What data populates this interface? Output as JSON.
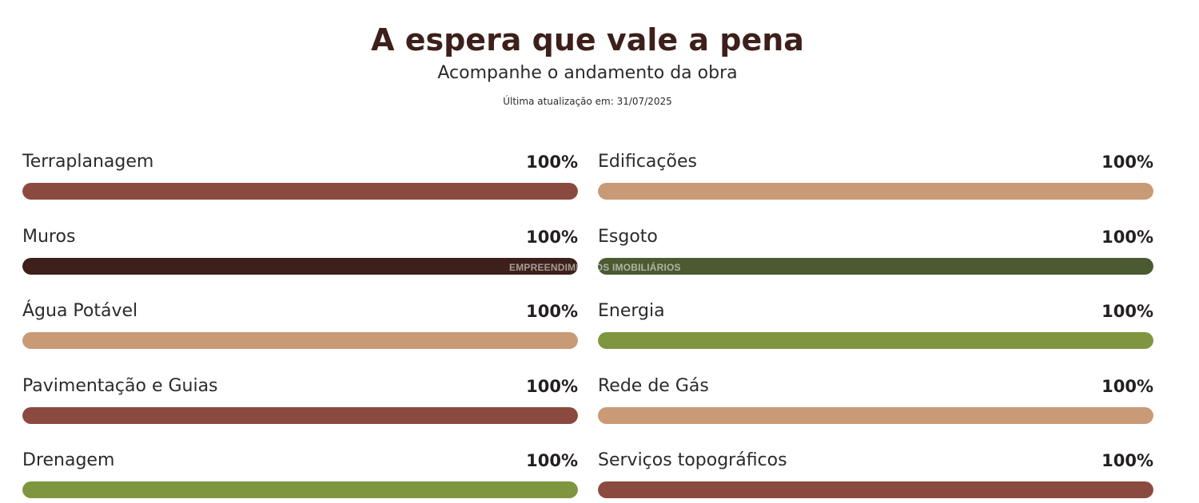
{
  "header": {
    "title": "A espera que vale a pena",
    "subtitle": "Acompanhe o andamento da obra",
    "updated": "Última atualização em: 31/07/2025"
  },
  "items": [
    {
      "label": "Terraplanagem",
      "percent_text": "100%",
      "progress": 1.0,
      "color": "#8b4a3f"
    },
    {
      "label": "Edificações",
      "percent_text": "100%",
      "progress": 1.0,
      "color": "#c99a76"
    },
    {
      "label": "Muros",
      "percent_text": "100%",
      "progress": 1.0,
      "color": "#3d201b"
    },
    {
      "label": "Esgoto",
      "percent_text": "100%",
      "progress": 1.0,
      "color": "#4b5a31"
    },
    {
      "label": "Água Potável",
      "percent_text": "100%",
      "progress": 1.0,
      "color": "#c99a76"
    },
    {
      "label": "Energia",
      "percent_text": "100%",
      "progress": 1.0,
      "color": "#7e963f"
    },
    {
      "label": "Pavimentação e Guias",
      "percent_text": "100%",
      "progress": 1.0,
      "color": "#8b4a3f"
    },
    {
      "label": "Rede de Gás",
      "percent_text": "100%",
      "progress": 1.0,
      "color": "#c99a76"
    },
    {
      "label": "Drenagem",
      "percent_text": "100%",
      "progress": 1.0,
      "color": "#7e963f"
    },
    {
      "label": "Serviços topográficos",
      "percent_text": "100%",
      "progress": 1.0,
      "color": "#8b4a3f"
    }
  ],
  "watermark": "EMPREENDIMENTOS IMOBILIÁRIOS"
}
